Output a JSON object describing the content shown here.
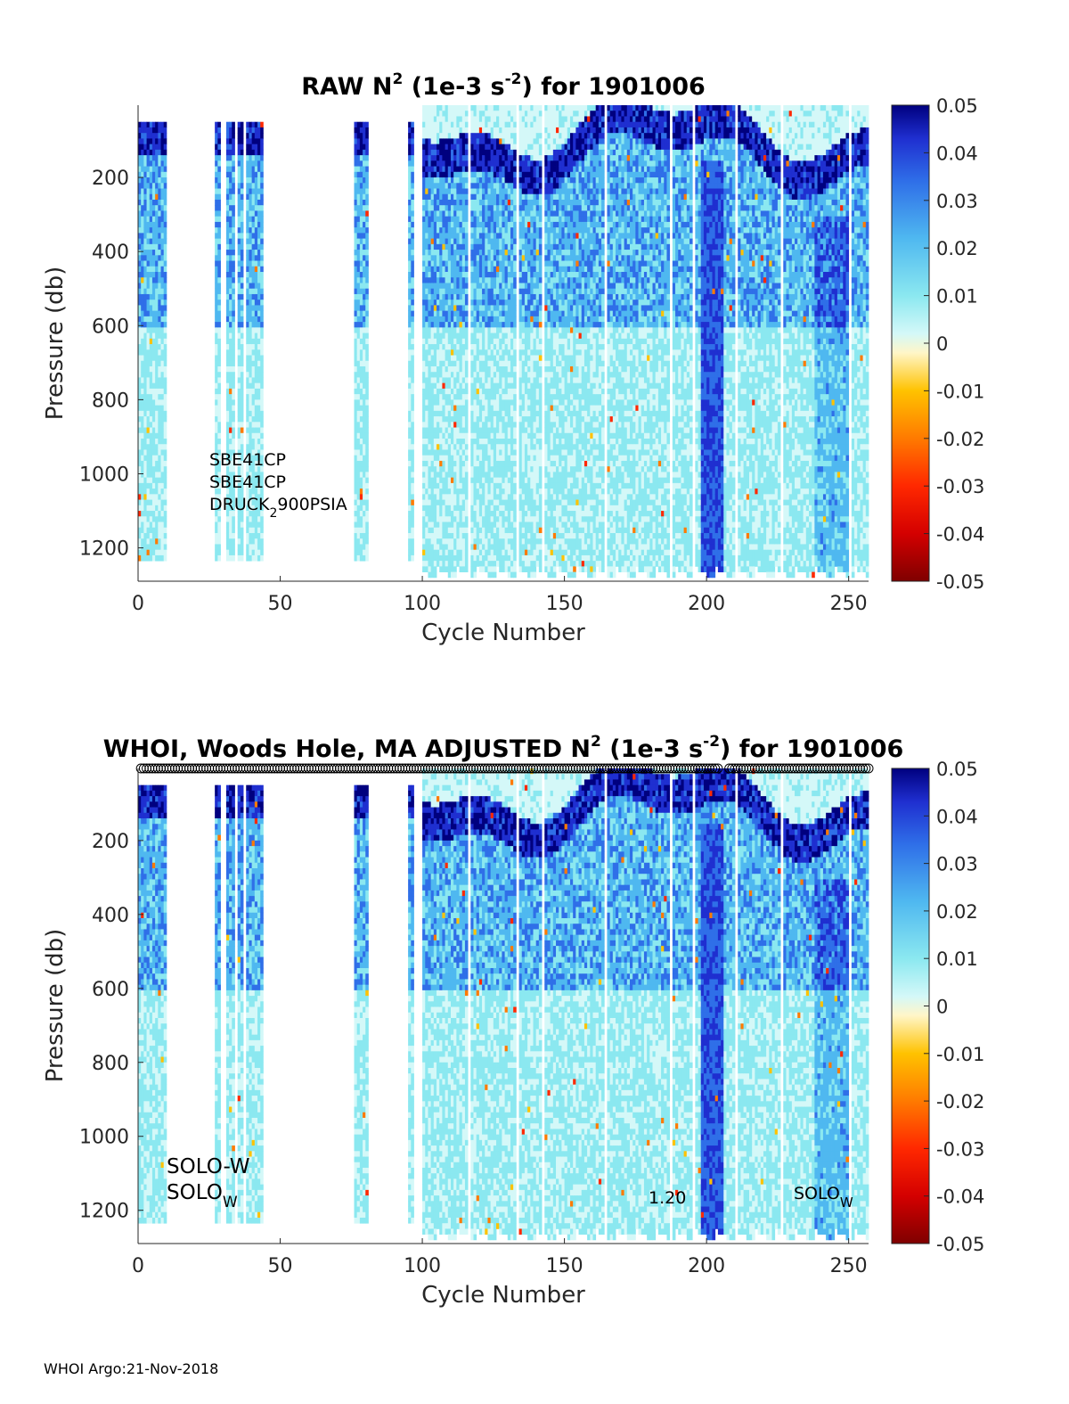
{
  "float_id": "1901006",
  "footer": "WHOI Argo:21-Nov-2018",
  "colors": {
    "colormap": [
      "#7f0000",
      "#d40000",
      "#ff2800",
      "#ff7a00",
      "#ffc200",
      "#fff6c8",
      "#d4f8f8",
      "#8be8f0",
      "#4fb8f0",
      "#2f6fe8",
      "#1f2fd0",
      "#00007f"
    ],
    "gap": "#ffffff"
  },
  "chart_data": [
    {
      "type": "heatmap",
      "title_prefix": "RAW N",
      "title_sup": "2",
      "title_mid": " (1e-3 s",
      "title_sup2": "-2",
      "title_suffix": ") for 1901006",
      "xlabel": "Cycle Number",
      "ylabel": "Pressure (db)",
      "xlim": [
        0,
        257
      ],
      "ylim": [
        1290,
        5
      ],
      "xticks": [
        "0",
        "50",
        "100",
        "150",
        "200",
        "250"
      ],
      "xtick_values": [
        0,
        50,
        100,
        150,
        200,
        250
      ],
      "yticks": [
        "200",
        "400",
        "600",
        "800",
        "1000",
        "1200"
      ],
      "ytick_values": [
        200,
        400,
        600,
        800,
        1000,
        1200
      ],
      "clim": [
        -0.05,
        0.05
      ],
      "colorbar_ticks": [
        "0.05",
        "0.04",
        "0.03",
        "0.02",
        "0.01",
        "0",
        "-0.01",
        "-0.02",
        "-0.03",
        "-0.04",
        "-0.05"
      ],
      "colorbar_tick_values": [
        0.05,
        0.04,
        0.03,
        0.02,
        0.01,
        0,
        -0.01,
        -0.02,
        -0.03,
        -0.04,
        -0.05
      ],
      "annotations": [
        "SBE41CP",
        "SBE41CP",
        "DRUCK"
      ],
      "annotation_sub": "2",
      "annotation_tail": "900PSIA",
      "qc_markers": false
    },
    {
      "type": "heatmap",
      "title_prefix": "WHOI, Woods Hole, MA  ADJUSTED N",
      "title_sup": "2",
      "title_mid": " (1e-3 s",
      "title_sup2": "-2",
      "title_suffix": ") for 1901006",
      "xlabel": "Cycle Number",
      "ylabel": "Pressure (db)",
      "xlim": [
        0,
        257
      ],
      "ylim": [
        1290,
        5
      ],
      "xticks": [
        "0",
        "50",
        "100",
        "150",
        "200",
        "250"
      ],
      "xtick_values": [
        0,
        50,
        100,
        150,
        200,
        250
      ],
      "yticks": [
        "200",
        "400",
        "600",
        "800",
        "1000",
        "1200"
      ],
      "yticks_values": [
        200,
        400,
        600,
        800,
        1000,
        1200
      ],
      "ytick_values": [
        200,
        400,
        600,
        800,
        1000,
        1200
      ],
      "clim": [
        -0.05,
        0.05
      ],
      "colorbar_ticks": [
        "0.05",
        "0.04",
        "0.03",
        "0.02",
        "0.01",
        "0",
        "-0.01",
        "-0.02",
        "-0.03",
        "-0.04",
        "-0.05"
      ],
      "colorbar_tick_values": [
        0.05,
        0.04,
        0.03,
        0.02,
        0.01,
        0,
        -0.01,
        -0.02,
        -0.03,
        -0.04,
        -0.05
      ],
      "annotations_left": [
        "SOLO-W",
        "SOLO"
      ],
      "annotation_left_sub": "W",
      "annotation_mid": "1.20",
      "annotation_right": "SOLO",
      "annotation_right_sub": "W",
      "qc_markers": true
    }
  ],
  "profile_coverage": {
    "cycle_ranges_with_data": [
      [
        0,
        9
      ],
      [
        27,
        28
      ],
      [
        31,
        33
      ],
      [
        35,
        36
      ],
      [
        38,
        43
      ],
      [
        76,
        77
      ],
      [
        78,
        80
      ],
      [
        95,
        96
      ],
      [
        100,
        257
      ]
    ],
    "gap_cycles": [
      116,
      133,
      142,
      164,
      187,
      195,
      210,
      226,
      250
    ]
  }
}
